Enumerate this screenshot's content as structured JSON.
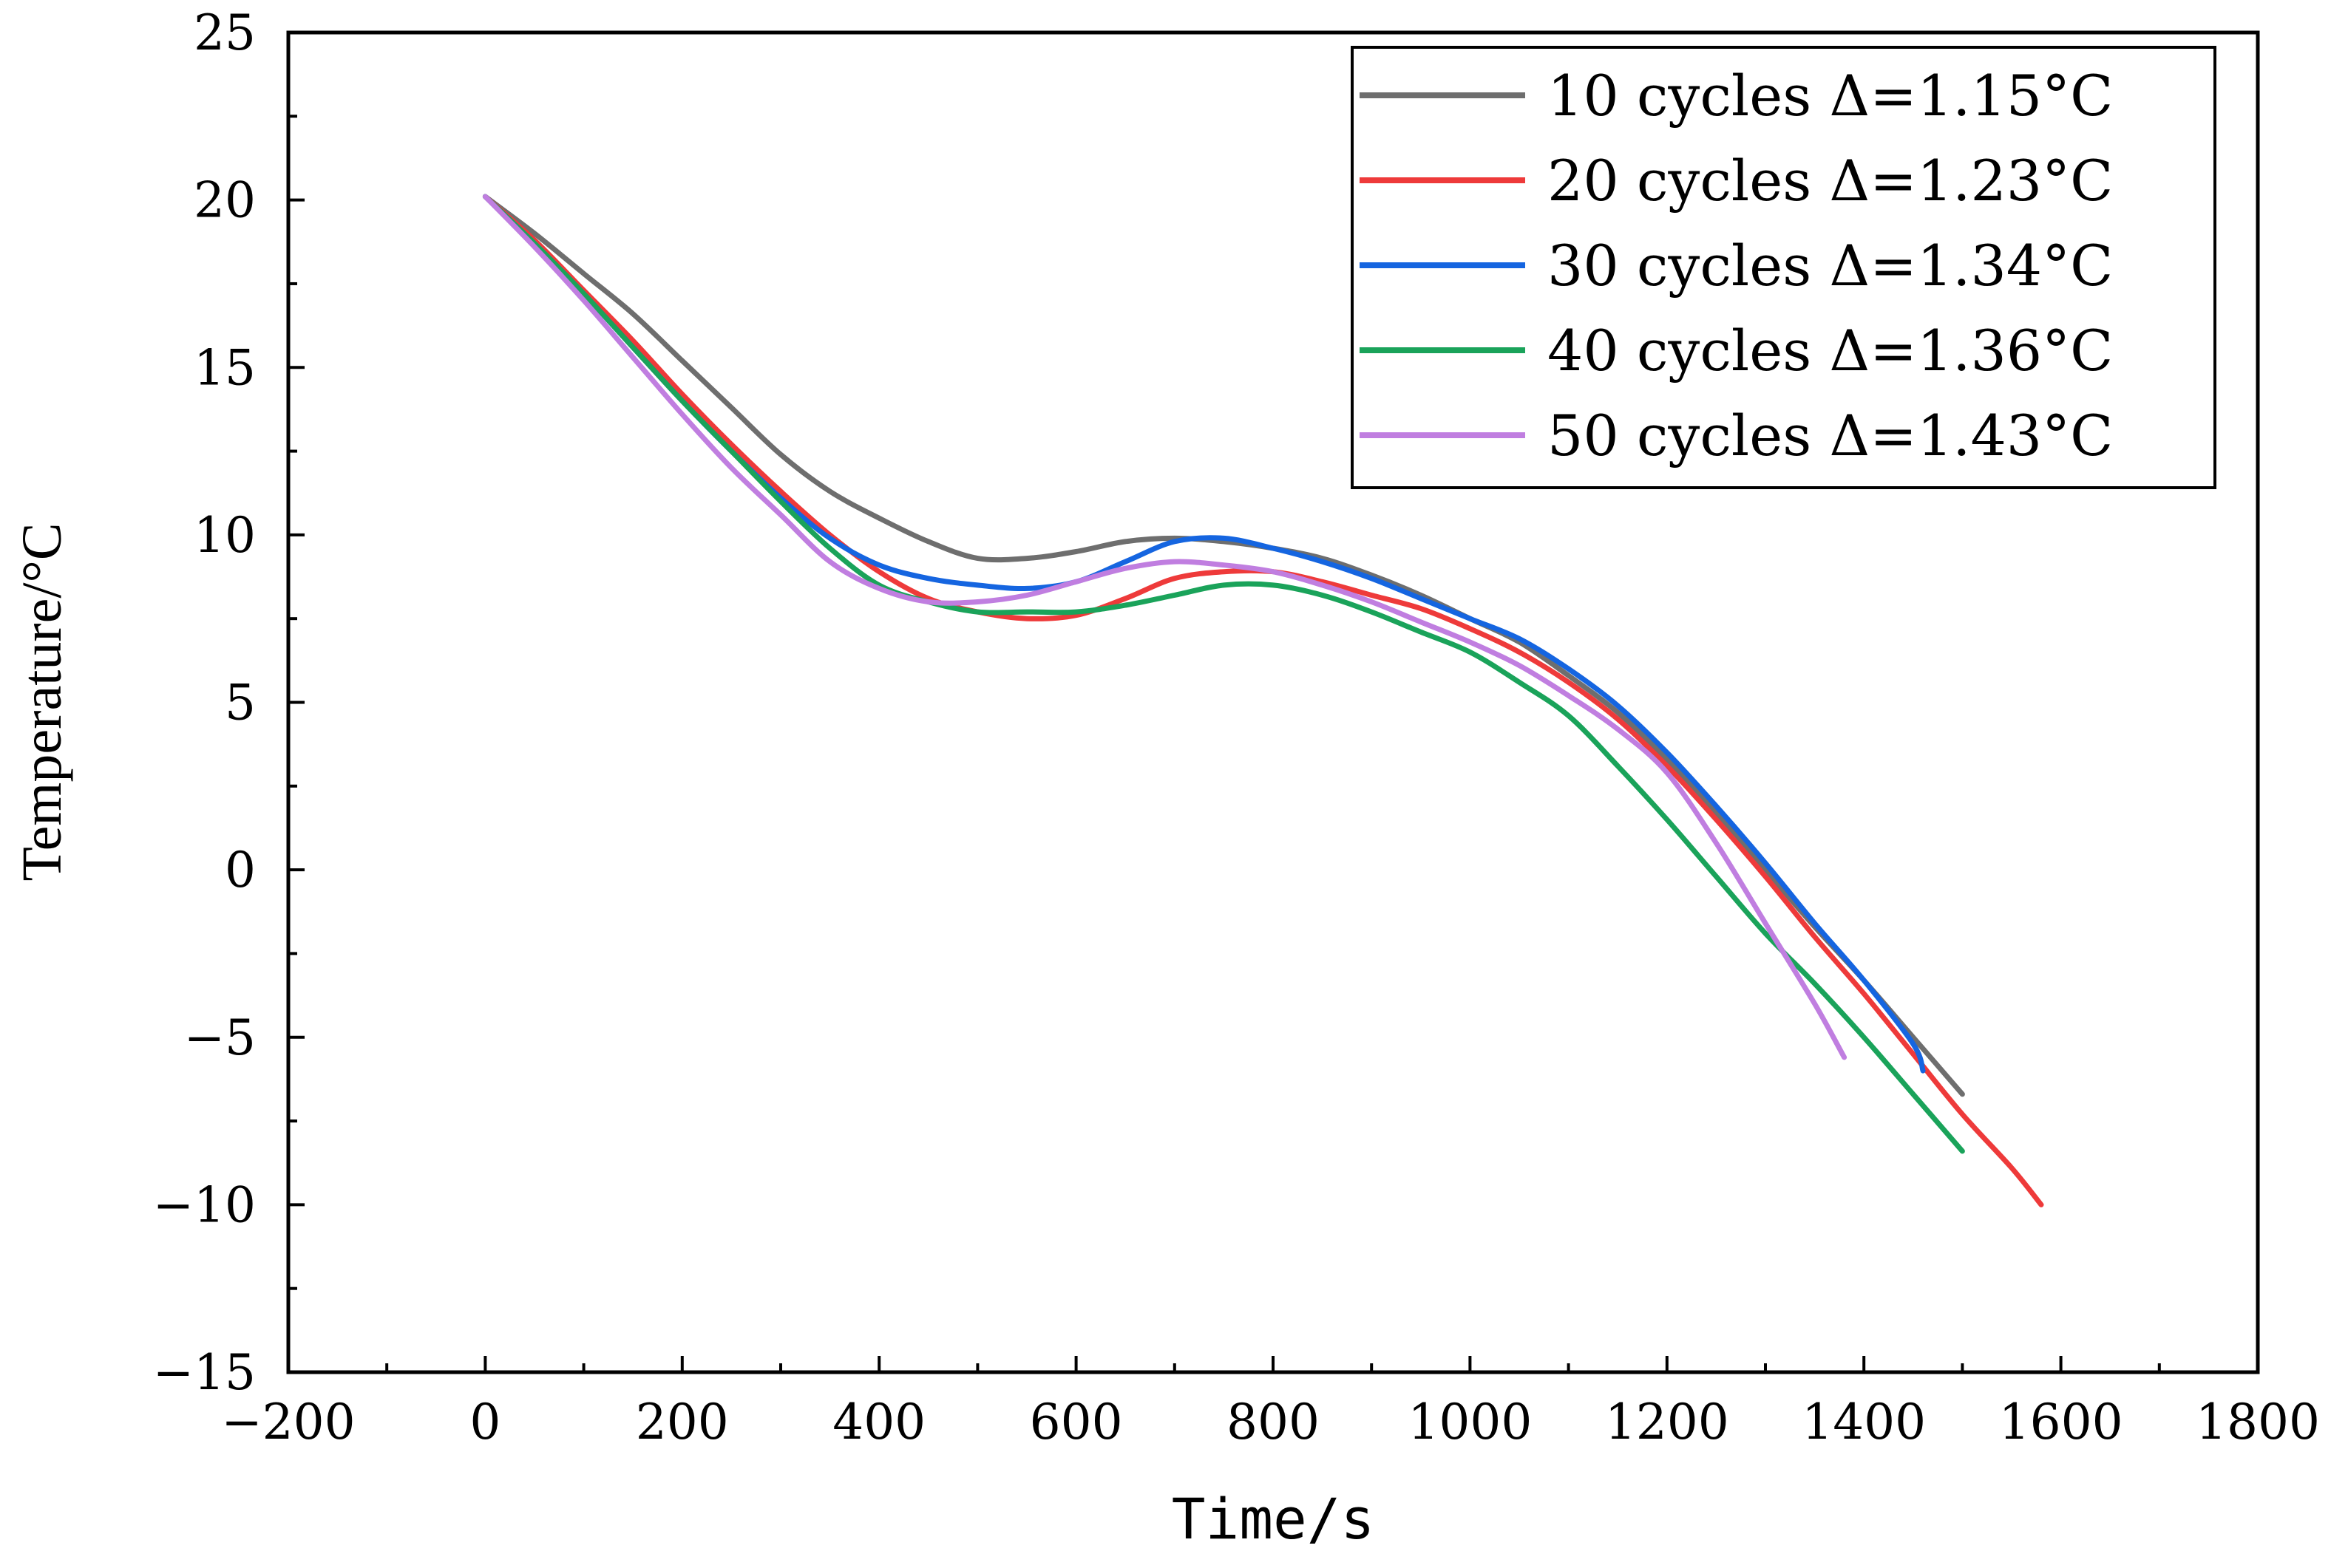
{
  "chart_data": {
    "type": "line",
    "xlabel": "Time/s",
    "ylabel": "Temperature/°C",
    "xlim": [
      -200,
      1800
    ],
    "ylim": [
      -15,
      25
    ],
    "xticks": [
      -200,
      0,
      200,
      400,
      600,
      800,
      1000,
      1200,
      1400,
      1600,
      1800
    ],
    "yticks": [
      -15,
      -10,
      -5,
      0,
      5,
      10,
      15,
      20,
      25
    ],
    "xtick_labels": [
      "−200",
      "0",
      "200",
      "400",
      "600",
      "800",
      "1000",
      "1200",
      "1400",
      "1600",
      "1800"
    ],
    "ytick_labels": [
      "−15",
      "−10",
      "−5",
      "0",
      "5",
      "10",
      "15",
      "20",
      "25"
    ],
    "grid": false,
    "legend_position": "top-right",
    "series": [
      {
        "name": "10 cycles Δ=1.15°C",
        "color": "#6e6e6e",
        "points": [
          [
            0,
            20.1
          ],
          [
            50,
            19.0
          ],
          [
            100,
            17.8
          ],
          [
            150,
            16.6
          ],
          [
            200,
            15.2
          ],
          [
            250,
            13.8
          ],
          [
            300,
            12.4
          ],
          [
            350,
            11.3
          ],
          [
            400,
            10.5
          ],
          [
            450,
            9.8
          ],
          [
            500,
            9.3
          ],
          [
            550,
            9.3
          ],
          [
            600,
            9.5
          ],
          [
            650,
            9.8
          ],
          [
            700,
            9.9
          ],
          [
            750,
            9.8
          ],
          [
            800,
            9.6
          ],
          [
            850,
            9.3
          ],
          [
            900,
            8.8
          ],
          [
            950,
            8.2
          ],
          [
            1000,
            7.5
          ],
          [
            1050,
            6.8
          ],
          [
            1100,
            5.8
          ],
          [
            1150,
            4.7
          ],
          [
            1200,
            3.3
          ],
          [
            1250,
            1.7
          ],
          [
            1300,
            0.0
          ],
          [
            1350,
            -1.7
          ],
          [
            1400,
            -3.3
          ],
          [
            1450,
            -5.0
          ],
          [
            1500,
            -6.7
          ]
        ]
      },
      {
        "name": "20 cycles Δ=1.23°C",
        "color": "#ee3a3a",
        "points": [
          [
            0,
            20.1
          ],
          [
            50,
            18.8
          ],
          [
            100,
            17.3
          ],
          [
            150,
            15.8
          ],
          [
            200,
            14.2
          ],
          [
            250,
            12.7
          ],
          [
            300,
            11.3
          ],
          [
            350,
            10.0
          ],
          [
            400,
            8.9
          ],
          [
            450,
            8.1
          ],
          [
            500,
            7.7
          ],
          [
            550,
            7.5
          ],
          [
            600,
            7.6
          ],
          [
            650,
            8.1
          ],
          [
            700,
            8.7
          ],
          [
            750,
            8.9
          ],
          [
            800,
            8.9
          ],
          [
            850,
            8.6
          ],
          [
            900,
            8.2
          ],
          [
            950,
            7.8
          ],
          [
            1000,
            7.2
          ],
          [
            1050,
            6.5
          ],
          [
            1100,
            5.6
          ],
          [
            1150,
            4.5
          ],
          [
            1200,
            3.1
          ],
          [
            1250,
            1.5
          ],
          [
            1300,
            -0.2
          ],
          [
            1350,
            -2.0
          ],
          [
            1400,
            -3.7
          ],
          [
            1450,
            -5.5
          ],
          [
            1500,
            -7.3
          ],
          [
            1550,
            -8.9
          ],
          [
            1580,
            -10.0
          ]
        ]
      },
      {
        "name": "30 cycles Δ=1.34°C",
        "color": "#1565e0",
        "points": [
          [
            0,
            20.1
          ],
          [
            50,
            18.7
          ],
          [
            100,
            17.2
          ],
          [
            150,
            15.6
          ],
          [
            200,
            14.0
          ],
          [
            250,
            12.5
          ],
          [
            300,
            11.1
          ],
          [
            350,
            9.9
          ],
          [
            400,
            9.1
          ],
          [
            450,
            8.7
          ],
          [
            500,
            8.5
          ],
          [
            550,
            8.4
          ],
          [
            600,
            8.6
          ],
          [
            650,
            9.2
          ],
          [
            700,
            9.8
          ],
          [
            750,
            9.9
          ],
          [
            800,
            9.6
          ],
          [
            850,
            9.2
          ],
          [
            900,
            8.7
          ],
          [
            950,
            8.1
          ],
          [
            1000,
            7.5
          ],
          [
            1050,
            6.9
          ],
          [
            1100,
            6.0
          ],
          [
            1150,
            4.9
          ],
          [
            1200,
            3.5
          ],
          [
            1250,
            1.9
          ],
          [
            1300,
            0.2
          ],
          [
            1350,
            -1.6
          ],
          [
            1400,
            -3.3
          ],
          [
            1450,
            -5.2
          ],
          [
            1460,
            -6.0
          ]
        ]
      },
      {
        "name": "40 cycles Δ=1.36°C",
        "color": "#1aa35a",
        "points": [
          [
            0,
            20.1
          ],
          [
            50,
            18.7
          ],
          [
            100,
            17.2
          ],
          [
            150,
            15.6
          ],
          [
            200,
            14.0
          ],
          [
            250,
            12.5
          ],
          [
            300,
            11.0
          ],
          [
            350,
            9.6
          ],
          [
            400,
            8.5
          ],
          [
            450,
            8.0
          ],
          [
            500,
            7.7
          ],
          [
            550,
            7.7
          ],
          [
            600,
            7.7
          ],
          [
            650,
            7.9
          ],
          [
            700,
            8.2
          ],
          [
            750,
            8.5
          ],
          [
            800,
            8.5
          ],
          [
            850,
            8.2
          ],
          [
            900,
            7.7
          ],
          [
            950,
            7.1
          ],
          [
            1000,
            6.5
          ],
          [
            1050,
            5.6
          ],
          [
            1100,
            4.6
          ],
          [
            1150,
            3.1
          ],
          [
            1200,
            1.5
          ],
          [
            1250,
            -0.2
          ],
          [
            1300,
            -1.9
          ],
          [
            1350,
            -3.4
          ],
          [
            1400,
            -5.0
          ],
          [
            1450,
            -6.7
          ],
          [
            1500,
            -8.4
          ]
        ]
      },
      {
        "name": "50 cycles Δ=1.43°C",
        "color": "#c07ee0",
        "points": [
          [
            0,
            20.1
          ],
          [
            50,
            18.6
          ],
          [
            100,
            17.0
          ],
          [
            150,
            15.3
          ],
          [
            200,
            13.6
          ],
          [
            250,
            12.0
          ],
          [
            300,
            10.6
          ],
          [
            350,
            9.2
          ],
          [
            400,
            8.4
          ],
          [
            450,
            8.0
          ],
          [
            500,
            8.0
          ],
          [
            550,
            8.2
          ],
          [
            600,
            8.6
          ],
          [
            650,
            9.0
          ],
          [
            700,
            9.2
          ],
          [
            750,
            9.1
          ],
          [
            800,
            8.9
          ],
          [
            850,
            8.5
          ],
          [
            900,
            8.0
          ],
          [
            950,
            7.4
          ],
          [
            1000,
            6.8
          ],
          [
            1050,
            6.1
          ],
          [
            1100,
            5.2
          ],
          [
            1150,
            4.2
          ],
          [
            1200,
            2.9
          ],
          [
            1250,
            0.8
          ],
          [
            1300,
            -1.6
          ],
          [
            1350,
            -4.0
          ],
          [
            1380,
            -5.6
          ]
        ]
      }
    ]
  }
}
